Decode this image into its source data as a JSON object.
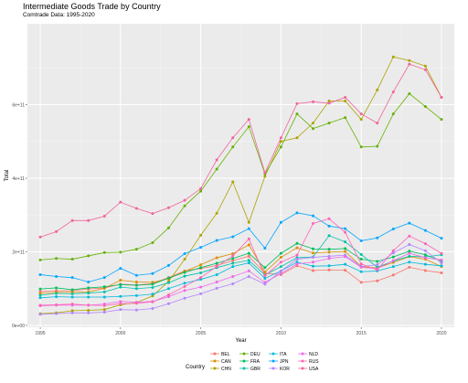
{
  "chart_data": {
    "type": "line",
    "title": "Intermediate Goods Trade by Country",
    "subtitle": "Comtrade Data: 1995-2020",
    "xlabel": "Year",
    "ylabel": "Total",
    "xlim": [
      1994.2,
      2020.8
    ],
    "ylim": [
      -5000000000.0,
      820000000000.0
    ],
    "x_ticks": [
      1995,
      2000,
      2005,
      2010,
      2015,
      2020
    ],
    "y_ticks": [
      0,
      200000000000.0,
      400000000000.0,
      600000000000.0
    ],
    "y_tick_labels": [
      "0e+00",
      "2e+11",
      "4e+11",
      "6e+11"
    ],
    "grid": true,
    "legend_title": "Country",
    "legend_position": "bottom",
    "x": [
      1995,
      1996,
      1997,
      1998,
      1999,
      2000,
      2001,
      2002,
      2003,
      2004,
      2005,
      2006,
      2007,
      2008,
      2009,
      2010,
      2011,
      2012,
      2013,
      2014,
      2015,
      2016,
      2017,
      2018,
      2019,
      2020
    ],
    "series": [
      {
        "name": "BEL",
        "color": "#F8766D",
        "values": [
          92000000000.0,
          94000000000.0,
          94000000000.0,
          99000000000.0,
          102000000000.0,
          112000000000.0,
          110000000000.0,
          114000000000.0,
          130000000000.0,
          148000000000.0,
          155000000000.0,
          163000000000.0,
          176000000000.0,
          188000000000.0,
          142000000000.0,
          138000000000.0,
          162000000000.0,
          149000000000.0,
          151000000000.0,
          150000000000.0,
          117000000000.0,
          121000000000.0,
          137000000000.0,
          158000000000.0,
          149000000000.0,
          143000000000.0
        ]
      },
      {
        "name": "CAN",
        "color": "#DB8E00",
        "values": [
          87000000000.0,
          90000000000.0,
          90000000000.0,
          91000000000.0,
          101000000000.0,
          123000000000.0,
          118000000000.0,
          117000000000.0,
          127000000000.0,
          147000000000.0,
          165000000000.0,
          184000000000.0,
          195000000000.0,
          219000000000.0,
          145000000000.0,
          185000000000.0,
          211000000000.0,
          197000000000.0,
          199000000000.0,
          201000000000.0,
          160000000000.0,
          156000000000.0,
          171000000000.0,
          187000000000.0,
          180000000000.0,
          160000000000.0
        ]
      },
      {
        "name": "CHN",
        "color": "#AEA200",
        "values": [
          32000000000.0,
          34000000000.0,
          40000000000.0,
          41000000000.0,
          43000000000.0,
          56000000000.0,
          62000000000.0,
          80000000000.0,
          120000000000.0,
          180000000000.0,
          245000000000.0,
          305000000000.0,
          390000000000.0,
          280000000000.0,
          405000000000.0,
          500000000000.0,
          510000000000.0,
          550000000000.0,
          610000000000.0,
          610000000000.0,
          560000000000.0,
          640000000000.0,
          730000000000.0,
          720000000000.0,
          705000000000.0,
          620000000000.0
        ]
      },
      {
        "name": "DEU",
        "color": "#64B200",
        "values": [
          178000000000.0,
          182000000000.0,
          180000000000.0,
          189000000000.0,
          198000000000.0,
          199000000000.0,
          207000000000.0,
          225000000000.0,
          265000000000.0,
          325000000000.0,
          365000000000.0,
          425000000000.0,
          485000000000.0,
          540000000000.0,
          412000000000.0,
          485000000000.0,
          575000000000.0,
          535000000000.0,
          550000000000.0,
          565000000000.0,
          485000000000.0,
          487000000000.0,
          575000000000.0,
          630000000000.0,
          595000000000.0,
          560000000000.0
        ]
      },
      {
        "name": "FRA",
        "color": "#00BD5C",
        "values": [
          99000000000.0,
          102000000000.0,
          97000000000.0,
          102000000000.0,
          105000000000.0,
          111000000000.0,
          109000000000.0,
          112000000000.0,
          129000000000.0,
          144000000000.0,
          157000000000.0,
          169000000000.0,
          182000000000.0,
          196000000000.0,
          157000000000.0,
          196000000000.0,
          223000000000.0,
          208000000000.0,
          207000000000.0,
          209000000000.0,
          180000000000.0,
          174000000000.0,
          186000000000.0,
          202000000000.0,
          192000000000.0,
          175000000000.0
        ]
      },
      {
        "name": "GBR",
        "color": "#00C1A7",
        "values": [
          82000000000.0,
          87000000000.0,
          86000000000.0,
          88000000000.0,
          91000000000.0,
          104000000000.0,
          100000000000.0,
          103000000000.0,
          116000000000.0,
          134000000000.0,
          143000000000.0,
          157000000000.0,
          169000000000.0,
          177000000000.0,
          137000000000.0,
          160000000000.0,
          184000000000.0,
          186000000000.0,
          244000000000.0,
          227000000000.0,
          193000000000.0,
          158000000000.0,
          175000000000.0,
          188000000000.0,
          186000000000.0,
          192000000000.0
        ]
      },
      {
        "name": "ITA",
        "color": "#00BADE",
        "values": [
          75000000000.0,
          78000000000.0,
          77000000000.0,
          77000000000.0,
          77000000000.0,
          79000000000.0,
          81000000000.0,
          85000000000.0,
          100000000000.0,
          115000000000.0,
          125000000000.0,
          138000000000.0,
          160000000000.0,
          170000000000.0,
          128000000000.0,
          148000000000.0,
          172000000000.0,
          161000000000.0,
          162000000000.0,
          166000000000.0,
          146000000000.0,
          148000000000.0,
          160000000000.0,
          172000000000.0,
          166000000000.0,
          162000000000.0
        ]
      },
      {
        "name": "JPN",
        "color": "#00A6FF",
        "values": [
          138000000000.0,
          133000000000.0,
          130000000000.0,
          118000000000.0,
          130000000000.0,
          155000000000.0,
          136000000000.0,
          141000000000.0,
          163000000000.0,
          195000000000.0,
          212000000000.0,
          231000000000.0,
          241000000000.0,
          263000000000.0,
          210000000000.0,
          280000000000.0,
          306000000000.0,
          298000000000.0,
          270000000000.0,
          263000000000.0,
          230000000000.0,
          238000000000.0,
          262000000000.0,
          278000000000.0,
          258000000000.0,
          237000000000.0
        ]
      },
      {
        "name": "KOR",
        "color": "#B385FF",
        "values": [
          30000000000.0,
          32000000000.0,
          34000000000.0,
          34000000000.0,
          36000000000.0,
          43000000000.0,
          42000000000.0,
          46000000000.0,
          59000000000.0,
          74000000000.0,
          86000000000.0,
          101000000000.0,
          113000000000.0,
          133000000000.0,
          112000000000.0,
          148000000000.0,
          180000000000.0,
          185000000000.0,
          188000000000.0,
          191000000000.0,
          160000000000.0,
          165000000000.0,
          197000000000.0,
          220000000000.0,
          203000000000.0,
          170000000000.0
        ]
      },
      {
        "name": "NLD",
        "color": "#EF67EB",
        "values": [
          53000000000.0,
          55000000000.0,
          55000000000.0,
          55000000000.0,
          58000000000.0,
          65000000000.0,
          63000000000.0,
          65000000000.0,
          78000000000.0,
          95000000000.0,
          104000000000.0,
          118000000000.0,
          133000000000.0,
          148000000000.0,
          117000000000.0,
          141000000000.0,
          167000000000.0,
          172000000000.0,
          182000000000.0,
          187000000000.0,
          158000000000.0,
          154000000000.0,
          176000000000.0,
          196000000000.0,
          184000000000.0,
          178000000000.0
        ]
      },
      {
        "name": "RUS",
        "color": "#FF63B6",
        "values": [
          55000000000.0,
          56000000000.0,
          58000000000.0,
          55000000000.0,
          54000000000.0,
          59000000000.0,
          60000000000.0,
          64000000000.0,
          83000000000.0,
          106000000000.0,
          130000000000.0,
          160000000000.0,
          189000000000.0,
          235000000000.0,
          135000000000.0,
          172000000000.0,
          191000000000.0,
          277000000000.0,
          290000000000.0,
          253000000000.0,
          167000000000.0,
          151000000000.0,
          203000000000.0,
          243000000000.0,
          222000000000.0,
          196000000000.0
        ]
      },
      {
        "name": "USA",
        "color": "#F2649D",
        "values": [
          240000000000.0,
          255000000000.0,
          285000000000.0,
          285000000000.0,
          297000000000.0,
          335000000000.0,
          318000000000.0,
          304000000000.0,
          320000000000.0,
          340000000000.0,
          372000000000.0,
          450000000000.0,
          510000000000.0,
          560000000000.0,
          415000000000.0,
          510000000000.0,
          603000000000.0,
          608000000000.0,
          604000000000.0,
          620000000000.0,
          575000000000.0,
          550000000000.0,
          635000000000.0,
          710000000000.0,
          695000000000.0,
          620000000000.0
        ]
      }
    ]
  }
}
